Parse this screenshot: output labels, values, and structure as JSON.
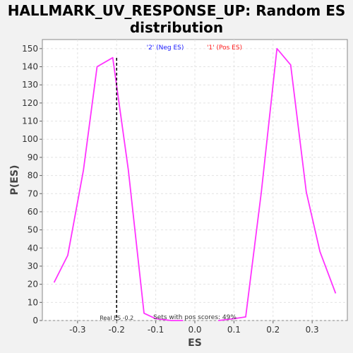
{
  "chart_data": {
    "type": "line",
    "title_line1": "HALLMARK_UV_RESPONSE_UP: Random ES",
    "title_line2": "distribution",
    "xlabel": "ES",
    "ylabel": "P(ES)",
    "xlim": [
      -0.39,
      0.39
    ],
    "ylim": [
      0,
      155
    ],
    "x_ticks": [
      -0.3,
      -0.2,
      -0.1,
      0.0,
      0.1,
      0.2,
      0.3
    ],
    "x_tick_labels": [
      "-0.3",
      "-0.2",
      "-0.1",
      "0.0",
      "0.1",
      "0.2",
      "0.3"
    ],
    "y_ticks": [
      0,
      10,
      20,
      30,
      40,
      50,
      60,
      70,
      80,
      90,
      100,
      110,
      120,
      130,
      140,
      150
    ],
    "y_tick_labels": [
      "0",
      "10",
      "20",
      "30",
      "40",
      "50",
      "60",
      "70",
      "80",
      "90",
      "100",
      "110",
      "120",
      "130",
      "140",
      "150"
    ],
    "grid": true,
    "series": [
      {
        "name": "'2' (Neg ES)",
        "color": "#ff33ff",
        "points": [
          [
            -0.36,
            21
          ],
          [
            -0.325,
            36
          ],
          [
            -0.285,
            83
          ],
          [
            -0.25,
            140
          ],
          [
            -0.21,
            145
          ],
          [
            -0.17,
            83
          ],
          [
            -0.13,
            4
          ],
          [
            -0.1,
            1
          ],
          [
            -0.06,
            0
          ],
          [
            -0.03,
            0
          ]
        ]
      },
      {
        "name": "'1' (Pos ES)",
        "color": "#ff33ff",
        "points": [
          [
            0.06,
            0
          ],
          [
            0.1,
            1
          ],
          [
            0.13,
            2
          ],
          [
            0.17,
            71
          ],
          [
            0.21,
            150
          ],
          [
            0.245,
            141
          ],
          [
            0.285,
            71
          ],
          [
            0.32,
            38
          ],
          [
            0.36,
            15
          ]
        ]
      }
    ],
    "legend": [
      {
        "label": "'2' (Neg ES)",
        "color": "#1a1aff"
      },
      {
        "label": "'1' (Pos ES)",
        "color": "#ff1a1a"
      }
    ],
    "real_es": {
      "value": -0.2,
      "label": "Real ES -0.2"
    },
    "annotation": "Sets with pos scores: 49%"
  }
}
